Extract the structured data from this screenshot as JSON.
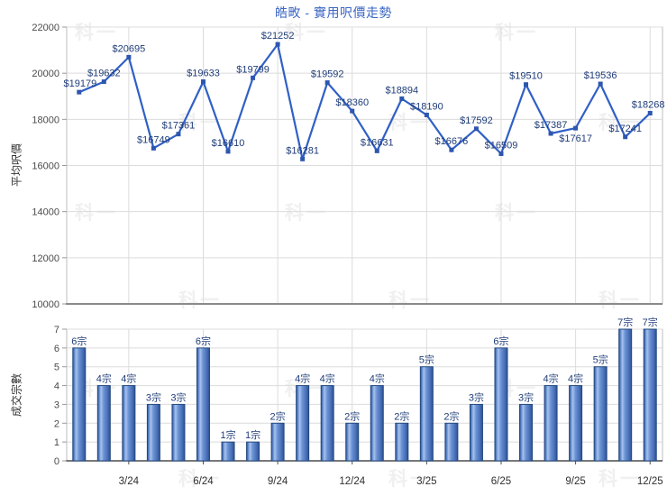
{
  "title": "皓畋 - 實用呎價走勢",
  "watermark_text": "科一",
  "colors": {
    "title": "#3c66c4",
    "line": "#3060c6",
    "marker": "#2d56ae",
    "data_label": "#1f3c78",
    "grid": "#dcdcdc",
    "plot_border": "#bcbcbc",
    "upper_axis_line": "#8a8a8a",
    "lower_axis_line": "#4d4d4d",
    "tick": "#999999",
    "ytick_label": "#4a4a4a",
    "xtick_label": "#2f2f2f",
    "bar_edge": "#24497f",
    "bar_dark": "#2d5194",
    "bar_mid": "#6b93d4",
    "bar_highlight": "#a8c2ec"
  },
  "chart_data": [
    {
      "type": "line",
      "title": "",
      "ylabel": "平均呎價",
      "xlabel": "",
      "ylim": [
        10000,
        22000
      ],
      "grid": true,
      "label_prefix": "$",
      "yticks": [
        "22000",
        "20000",
        "18000",
        "16000",
        "14000",
        "12000",
        "10000"
      ],
      "values": [
        19179,
        19632,
        20695,
        16749,
        17361,
        19633,
        16610,
        19799,
        21252,
        16281,
        19592,
        18360,
        16631,
        18894,
        18190,
        16676,
        17592,
        16509,
        19510,
        17387,
        17617,
        19536,
        17241,
        18268
      ]
    },
    {
      "type": "bar",
      "title": "",
      "ylabel": "成交宗數",
      "xlabel": "",
      "ylim": [
        0,
        7
      ],
      "grid": true,
      "label_suffix": "宗",
      "yticks": [
        "7",
        "6",
        "5",
        "4",
        "3",
        "2",
        "1",
        "0"
      ],
      "values": [
        6,
        4,
        4,
        3,
        3,
        6,
        1,
        1,
        2,
        4,
        4,
        2,
        4,
        2,
        5,
        2,
        3,
        6,
        3,
        4,
        4,
        5,
        7,
        7
      ],
      "x_tick_labels": [
        "3/24",
        "6/24",
        "9/24",
        "12/24",
        "3/25",
        "6/25",
        "9/25",
        "12/25"
      ],
      "x_tick_indices": [
        2,
        5,
        8,
        11,
        14,
        17,
        20,
        23
      ]
    }
  ]
}
